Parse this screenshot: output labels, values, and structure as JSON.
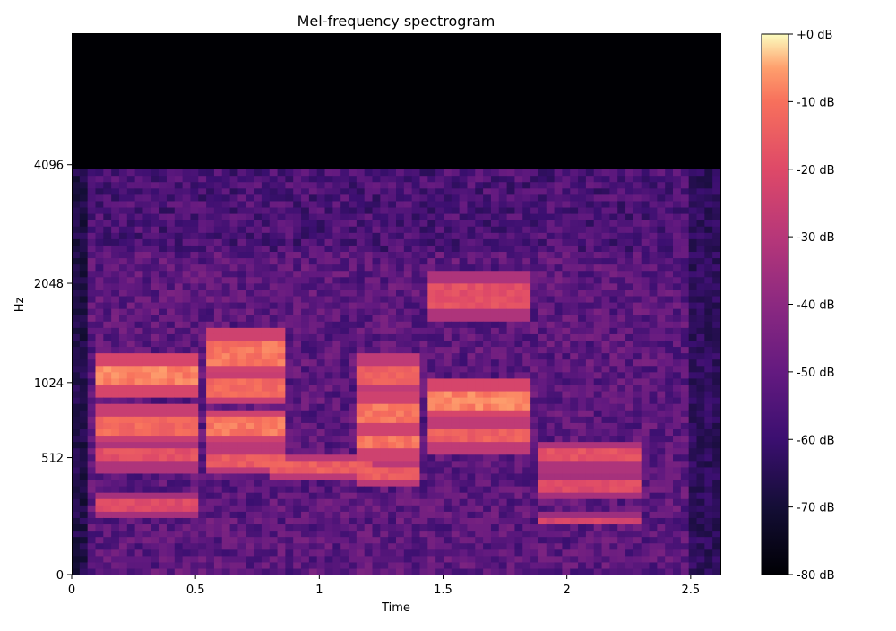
{
  "chart_data": {
    "type": "heatmap",
    "title": "Mel-frequency spectrogram",
    "xlabel": "Time",
    "ylabel": "Hz",
    "xlim": [
      0,
      2.62
    ],
    "x_ticks": [
      {
        "value": 0,
        "label": "0"
      },
      {
        "value": 0.5,
        "label": "0.5"
      },
      {
        "value": 1,
        "label": "1"
      },
      {
        "value": 1.5,
        "label": "1.5"
      },
      {
        "value": 2,
        "label": "2"
      },
      {
        "value": 2.5,
        "label": "2.5"
      }
    ],
    "y_scale": "mel",
    "y_max_hz": 8192,
    "y_ticks": [
      {
        "value": 0,
        "label": "0"
      },
      {
        "value": 512,
        "label": "512"
      },
      {
        "value": 1024,
        "label": "1024"
      },
      {
        "value": 2048,
        "label": "2048"
      },
      {
        "value": 4096,
        "label": "4096"
      }
    ],
    "colormap": "magma",
    "colorbar": {
      "range_db": [
        -80,
        0
      ],
      "tick_labels": [
        "+0 dB",
        "-10 dB",
        "-20 dB",
        "-30 dB",
        "-40 dB",
        "-50 dB",
        "-60 dB",
        "-70 dB",
        "-80 dB"
      ],
      "tick_values": [
        0,
        -10,
        -20,
        -30,
        -40,
        -50,
        -60,
        -70,
        -80
      ]
    },
    "approx_cutoff_hz": 4000,
    "energy_bands_approx": [
      {
        "t_start": 0.1,
        "t_end": 0.5,
        "hz": 1100,
        "db": -8
      },
      {
        "t_start": 0.1,
        "t_end": 0.5,
        "hz": 720,
        "db": -12
      },
      {
        "t_start": 0.1,
        "t_end": 0.5,
        "hz": 520,
        "db": -18
      },
      {
        "t_start": 0.1,
        "t_end": 0.5,
        "hz": 270,
        "db": -20
      },
      {
        "t_start": 0.55,
        "t_end": 0.85,
        "hz": 1300,
        "db": -10
      },
      {
        "t_start": 0.55,
        "t_end": 0.85,
        "hz": 1000,
        "db": -12
      },
      {
        "t_start": 0.55,
        "t_end": 0.85,
        "hz": 700,
        "db": -10
      },
      {
        "t_start": 0.55,
        "t_end": 0.85,
        "hz": 500,
        "db": -15
      },
      {
        "t_start": 0.8,
        "t_end": 1.2,
        "hz": 450,
        "db": -15
      },
      {
        "t_start": 1.15,
        "t_end": 1.4,
        "hz": 1100,
        "db": -14
      },
      {
        "t_start": 1.15,
        "t_end": 1.4,
        "hz": 800,
        "db": -10
      },
      {
        "t_start": 1.15,
        "t_end": 1.4,
        "hz": 600,
        "db": -10
      },
      {
        "t_start": 1.15,
        "t_end": 1.4,
        "hz": 440,
        "db": -15
      },
      {
        "t_start": 1.45,
        "t_end": 1.85,
        "hz": 900,
        "db": -8
      },
      {
        "t_start": 1.45,
        "t_end": 1.85,
        "hz": 650,
        "db": -14
      },
      {
        "t_start": 1.45,
        "t_end": 1.85,
        "hz": 1900,
        "db": -18
      },
      {
        "t_start": 1.9,
        "t_end": 2.3,
        "hz": 520,
        "db": -18
      },
      {
        "t_start": 1.9,
        "t_end": 2.3,
        "hz": 370,
        "db": -20
      },
      {
        "t_start": 1.9,
        "t_end": 2.3,
        "hz": 210,
        "db": -22
      }
    ]
  }
}
